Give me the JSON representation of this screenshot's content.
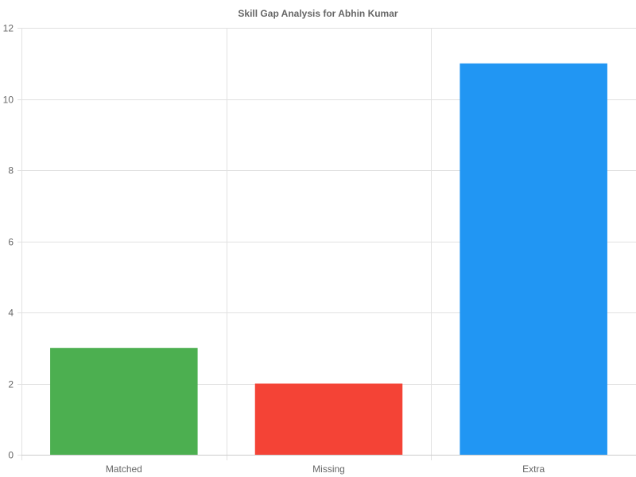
{
  "chart_data": {
    "type": "bar",
    "title": "Skill Gap Analysis for Abhin Kumar",
    "categories": [
      "Matched",
      "Missing",
      "Extra"
    ],
    "values": [
      3,
      2,
      11
    ],
    "colors": [
      "#4caf50",
      "#f44336",
      "#2196f3"
    ],
    "xlabel": "",
    "ylabel": "",
    "ylim": [
      0,
      12
    ],
    "y_ticks": [
      0,
      2,
      4,
      6,
      8,
      10,
      12
    ],
    "grid": true,
    "legend": "none"
  }
}
